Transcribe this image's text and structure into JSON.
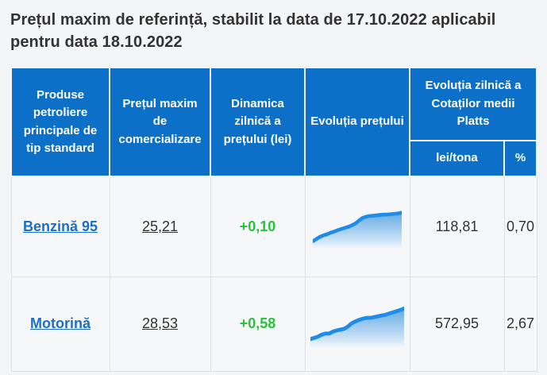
{
  "title": "Prețul maxim de referință, stabilit la data de 17.10.2022 aplicabil pentru data 18.10.2022",
  "table": {
    "header": {
      "product": "Produse petroliere principale de tip standard",
      "max_price": "Prețul maxim de comercializare",
      "daily_dynamic": "Dinamica zilnică a prețului (lei)",
      "evolution": "Evoluția prețului",
      "platts_group": "Evoluția zilnică a Cotaților medii Platts",
      "platts_lei": "lei/tona",
      "platts_pct": "%"
    },
    "rows": [
      {
        "product": "Benzină 95",
        "max_price": "25,21",
        "daily_dynamic": "+0,10",
        "platts_lei": "118,81",
        "platts_pct": "0,70"
      },
      {
        "product": "Motorină",
        "max_price": "28,53",
        "daily_dynamic": "+0,58",
        "platts_lei": "572,95",
        "platts_pct": "2,67"
      }
    ]
  },
  "chart_data": [
    {
      "type": "area",
      "title": "Evoluția prețului — Benzină 95",
      "xlabel": "",
      "ylabel": "",
      "legend": false,
      "grid": false,
      "values_relative": [
        10,
        16,
        22,
        26,
        29,
        33,
        36,
        40,
        43,
        46,
        49,
        53,
        58,
        66,
        73,
        76,
        78,
        79,
        80,
        81,
        82,
        82,
        83,
        84,
        85,
        87
      ]
    },
    {
      "type": "area",
      "title": "Evoluția prețului — Motorină",
      "xlabel": "",
      "ylabel": "",
      "legend": false,
      "grid": false,
      "values_relative": [
        12,
        15,
        18,
        23,
        26,
        26,
        31,
        34,
        36,
        38,
        44,
        52,
        57,
        61,
        64,
        66,
        66,
        68,
        70,
        72,
        74,
        77,
        80,
        83,
        86,
        90
      ]
    }
  ],
  "colors": {
    "header_bg": "#0c70c8",
    "page_bg": "#f4f5f7",
    "link_blue": "#1b6fc7",
    "positive_green": "#28c33c",
    "spark_line": "#1e8ce8",
    "text": "#333333"
  }
}
